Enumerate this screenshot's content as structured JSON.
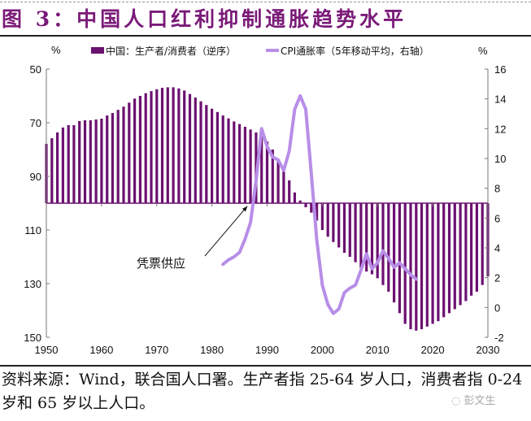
{
  "title": "图 3：中国人口红利抑制通胀趋势水平",
  "source_note": "资料来源：Wind，联合国人口署。生产者指 25-64 岁人口，消费者指 0-24 岁和 65 岁以上人口。",
  "watermark": "彭文生",
  "chart_data": {
    "type": "bar+line",
    "title": "中国人口红利抑制通胀趋势水平",
    "left_axis": {
      "label": "%",
      "range": [
        50,
        150
      ],
      "inverted": true,
      "ticks": [
        50,
        70,
        90,
        110,
        130,
        150
      ],
      "baseline": 100
    },
    "right_axis": {
      "label": "%",
      "range": [
        -2,
        16
      ],
      "ticks": [
        -2,
        0,
        2,
        4,
        6,
        8,
        10,
        12,
        14,
        16
      ]
    },
    "x_axis": {
      "range": [
        1950,
        2030
      ],
      "ticks": [
        1950,
        1960,
        1970,
        1980,
        1990,
        2000,
        2010,
        2020,
        2030
      ]
    },
    "legend": {
      "placement": "top",
      "entries": [
        {
          "name": "中国：生产者/消费者（逆序）",
          "color": "#6b1170",
          "kind": "bar"
        },
        {
          "name": "CPI通胀率（5年移动平均，右轴）",
          "color": "#b88ee8",
          "kind": "line"
        }
      ]
    },
    "series": [
      {
        "name": "中国：生产者/消费者（逆序）",
        "axis": "left",
        "type": "bar",
        "color": "#6b1170",
        "x": [
          1950,
          1951,
          1952,
          1953,
          1954,
          1955,
          1956,
          1957,
          1958,
          1959,
          1960,
          1961,
          1962,
          1963,
          1964,
          1965,
          1966,
          1967,
          1968,
          1969,
          1970,
          1971,
          1972,
          1973,
          1974,
          1975,
          1976,
          1977,
          1978,
          1979,
          1980,
          1981,
          1982,
          1983,
          1984,
          1985,
          1986,
          1987,
          1988,
          1989,
          1990,
          1991,
          1992,
          1993,
          1994,
          1995,
          1996,
          1997,
          1998,
          1999,
          2000,
          2001,
          2002,
          2003,
          2004,
          2005,
          2006,
          2007,
          2008,
          2009,
          2010,
          2011,
          2012,
          2013,
          2014,
          2015,
          2016,
          2017,
          2018,
          2019,
          2020,
          2021,
          2022,
          2023,
          2024,
          2025,
          2026,
          2027,
          2028,
          2029,
          2030
        ],
        "values": [
          77.9,
          75.8,
          73.6,
          71.8,
          70.9,
          70.9,
          69.4,
          69.1,
          69.1,
          68.8,
          68.5,
          67.3,
          66.4,
          65.2,
          64.0,
          62.5,
          61.0,
          60.0,
          59.0,
          58.2,
          57.5,
          57.0,
          56.8,
          56.8,
          57.2,
          58.0,
          59.3,
          60.6,
          62.0,
          63.4,
          64.8,
          66.0,
          67.3,
          68.4,
          69.5,
          70.5,
          71.5,
          72.5,
          73.6,
          74.7,
          77.0,
          80.0,
          83.5,
          87.0,
          91.5,
          96.0,
          99.0,
          101.5,
          103.5,
          106.5,
          110.0,
          112.5,
          114.5,
          116.5,
          118.5,
          120.0,
          122.0,
          124.0,
          125.5,
          126.5,
          128.0,
          130.5,
          133.0,
          137.0,
          141.0,
          145.0,
          147.0,
          147.5,
          147.0,
          146.0,
          145.0,
          144.0,
          142.5,
          141.0,
          139.5,
          138.0,
          136.5,
          134.5,
          133.0,
          130.5,
          127.3
        ]
      },
      {
        "name": "CPI通胀率（5年移动平均，右轴）",
        "axis": "right",
        "type": "line",
        "color": "#b88ee8",
        "x": [
          1982,
          1983,
          1984,
          1985,
          1986,
          1987,
          1988,
          1989,
          1990,
          1991,
          1992,
          1993,
          1994,
          1995,
          1996,
          1997,
          1998,
          1999,
          2000,
          2001,
          2002,
          2003,
          2004,
          2005,
          2006,
          2007,
          2008,
          2009,
          2010,
          2011,
          2012,
          2013,
          2014,
          2015,
          2016,
          2017
        ],
        "values": [
          2.9,
          3.2,
          3.4,
          3.7,
          4.6,
          5.7,
          8.5,
          12.0,
          10.8,
          10.1,
          9.9,
          9.2,
          10.5,
          13.3,
          14.2,
          13.3,
          9.0,
          4.5,
          1.5,
          0.2,
          -0.4,
          -0.1,
          1.0,
          1.3,
          1.5,
          2.5,
          3.6,
          2.6,
          3.0,
          3.8,
          3.3,
          2.7,
          3.0,
          2.6,
          2.2,
          1.9
        ]
      }
    ],
    "annotations": [
      {
        "text": "凭票供应",
        "points_to": {
          "x": 1987,
          "axis": "right",
          "y": 6.8
        }
      }
    ]
  }
}
